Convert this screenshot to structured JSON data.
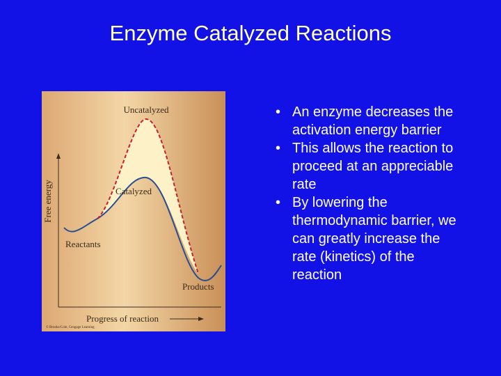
{
  "header": {
    "title": "Enzyme Catalyzed Reactions"
  },
  "figure": {
    "labels": {
      "uncatalyzed": "Uncatalyzed",
      "catalyzed": "Catalyzed",
      "reactants": "Reactants",
      "products": "Products",
      "y_axis": "Free energy",
      "x_axis": "Progress of reaction",
      "credit": "© Brooks/Cole, Cengage Learning"
    }
  },
  "bullets": [
    "An enzyme decreases the activation energy barrier",
    "This allows the reaction to proceed at an appreciable rate",
    "By lowering the thermodynamic barrier, we can greatly increase the rate (kinetics) of the reaction"
  ]
}
